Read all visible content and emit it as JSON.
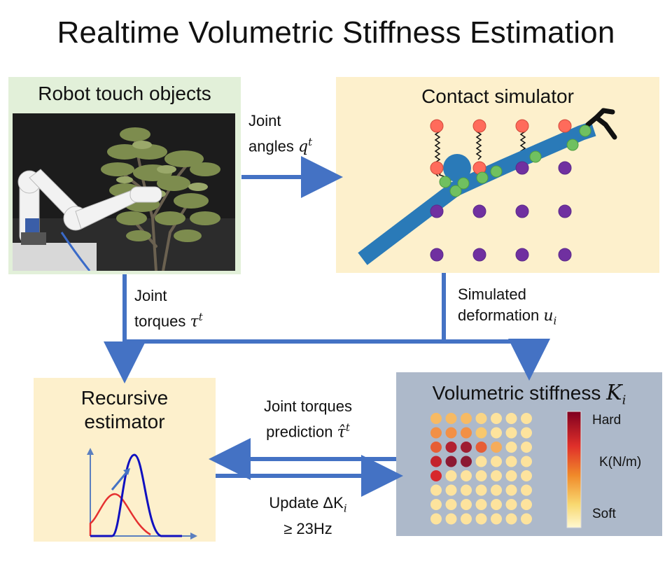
{
  "title": "Realtime Volumetric Stiffness Estimation",
  "robot_panel": {
    "title": "Robot touch objects"
  },
  "simulator_panel": {
    "title": "Contact simulator"
  },
  "estimator_panel": {
    "title_line1": "Recursive",
    "title_line2": "estimator"
  },
  "stiffness_panel": {
    "title": "Volumetric stiffness",
    "title_symbol": "K",
    "title_subscript": "i",
    "colorbar": {
      "top_label": "Hard",
      "mid_label": "K(N/m)",
      "bottom_label": "Soft"
    },
    "grid_levels": [
      [
        0.35,
        0.35,
        0.35,
        0.2,
        0.1,
        0.1,
        0.1
      ],
      [
        0.5,
        0.5,
        0.5,
        0.3,
        0.1,
        0.1,
        0.1
      ],
      [
        0.65,
        0.9,
        0.95,
        0.65,
        0.4,
        0.1,
        0.1
      ],
      [
        0.85,
        1.0,
        1.0,
        0.1,
        0.1,
        0.1,
        0.1
      ],
      [
        0.8,
        0.1,
        0.1,
        0.1,
        0.1,
        0.1,
        0.1
      ],
      [
        0.1,
        0.1,
        0.1,
        0.1,
        0.1,
        0.1,
        0.1
      ],
      [
        0.1,
        0.1,
        0.1,
        0.1,
        0.1,
        0.1,
        0.1
      ],
      [
        0.1,
        0.1,
        0.1,
        0.1,
        0.1,
        0.1,
        0.1
      ]
    ]
  },
  "labels": {
    "joint_angles_line1": "Joint",
    "joint_angles_line2": "angles",
    "joint_angles_symbol": "q",
    "joint_angles_sup": "t",
    "joint_torques_line1": "Joint",
    "joint_torques_line2": "torques",
    "joint_torques_symbol": "τ",
    "joint_torques_sup": "t",
    "sim_deform_line1": "Simulated",
    "sim_deform_line2": "deformation",
    "sim_deform_symbol": "u",
    "sim_deform_sub": "i",
    "prediction_line1": "Joint torques",
    "prediction_line2": "prediction",
    "prediction_symbol": "τ̂",
    "prediction_sup": "t",
    "update_line1": "Update ΔK",
    "update_sub": "i",
    "update_line2": "≥ 23Hz"
  },
  "colors": {
    "arrow": "#4472c4",
    "robot_panel_bg": "#e2f0d9",
    "sim_panel_bg": "#fdf0cc",
    "stiffness_panel_bg": "#adb9ca",
    "node_red": "#ff6b5b",
    "node_purple": "#7030a0",
    "node_green": "#70c060",
    "beam": "#2a7ab8"
  }
}
